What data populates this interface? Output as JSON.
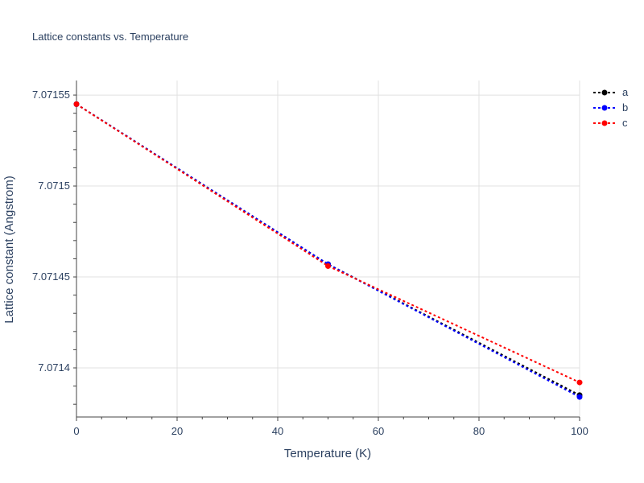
{
  "chart_data": {
    "type": "line",
    "title": "Lattice constants vs. Temperature",
    "xlabel": "Temperature (K)",
    "ylabel": "Lattice constant (Angstrom)",
    "xlim": [
      0,
      100
    ],
    "ylim": [
      7.071373,
      7.071558
    ],
    "x_ticks": [
      0,
      20,
      40,
      60,
      80,
      100
    ],
    "y_ticks": [
      7.0714,
      7.07145,
      7.0715,
      7.07155
    ],
    "y_tick_labels": [
      "7.0714",
      "7.07145",
      "7.0715",
      "7.07155"
    ],
    "grid": true,
    "legend_position": "top-right",
    "series": [
      {
        "name": "a",
        "color": "#000000",
        "x": [
          0,
          50,
          100
        ],
        "y": [
          7.071545,
          7.071457,
          7.071385
        ]
      },
      {
        "name": "b",
        "color": "#0000ff",
        "x": [
          0,
          50,
          100
        ],
        "y": [
          7.071545,
          7.071457,
          7.071384
        ]
      },
      {
        "name": "c",
        "color": "#ff0000",
        "x": [
          0,
          50,
          100
        ],
        "y": [
          7.071545,
          7.071456,
          7.071392
        ]
      }
    ]
  }
}
